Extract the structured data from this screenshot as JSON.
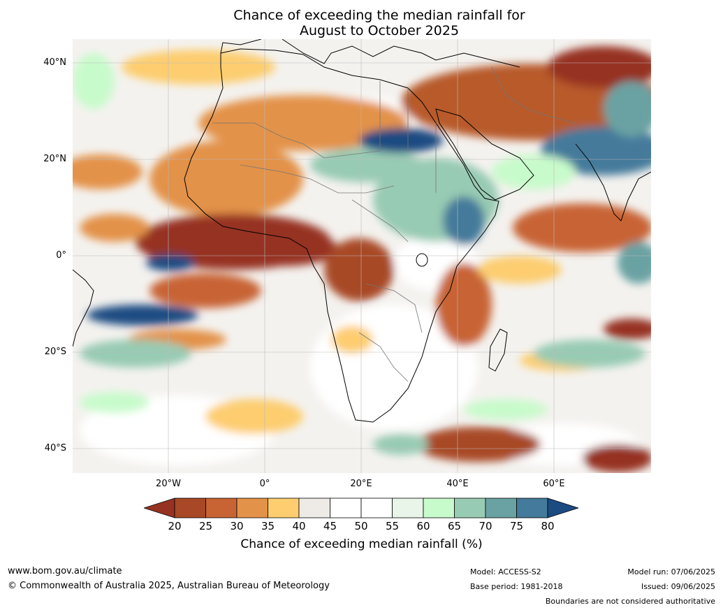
{
  "title_line1": "Chance of exceeding the median rainfall for",
  "title_line2": "August to October 2025",
  "lat_labels": [
    "40°N",
    "20°N",
    "0°",
    "20°S",
    "40°S"
  ],
  "lon_labels": [
    "20°W",
    "0°",
    "20°E",
    "40°E",
    "60°E"
  ],
  "colorbar": {
    "ticks": [
      "20",
      "25",
      "30",
      "35",
      "40",
      "45",
      "50",
      "55",
      "60",
      "65",
      "70",
      "75",
      "80"
    ],
    "colors": [
      "#963222",
      "#a84826",
      "#c86434",
      "#e3924a",
      "#fdcd6f",
      "#eeeae5",
      "#ffffff",
      "#ffffff",
      "#e8f5e8",
      "#c8fbcb",
      "#98cbb3",
      "#6aa2a3",
      "#447a9b",
      "#1c4b82"
    ],
    "title": "Chance of exceeding median rainfall (%)"
  },
  "footer": {
    "website": "www.bom.gov.au/climate",
    "copyright": "© Commonwealth of Australia 2025, Australian Bureau of Meteorology",
    "model": "Model: ACCESS-S2",
    "base_period": "Base period: 1981-2018",
    "model_run": "Model run: 07/06/2025",
    "issued": "Issued: 09/06/2025",
    "disclaimer": "Boundaries are not considered authoritative"
  }
}
